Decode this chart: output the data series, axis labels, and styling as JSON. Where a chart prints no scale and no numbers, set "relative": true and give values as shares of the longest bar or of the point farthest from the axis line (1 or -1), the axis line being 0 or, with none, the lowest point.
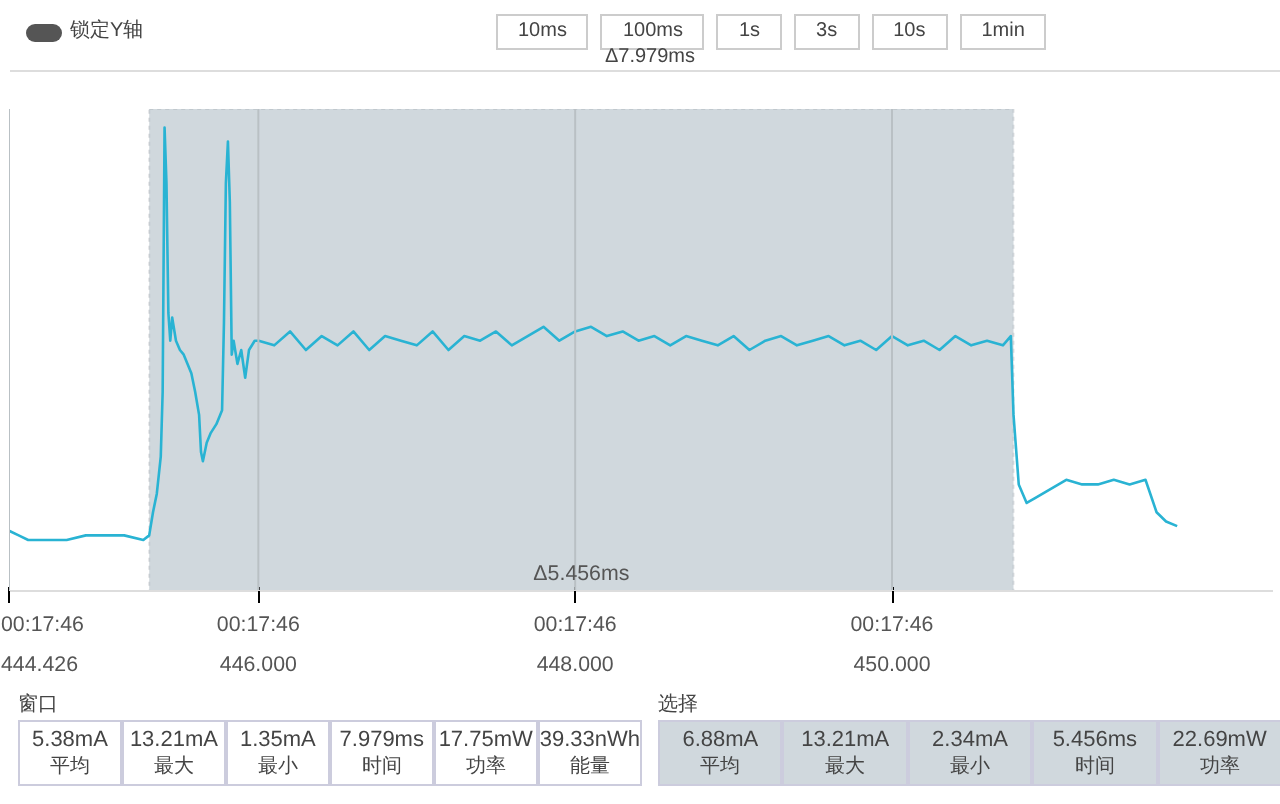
{
  "chart_data": {
    "type": "line",
    "relative": true,
    "grid": "x",
    "xlim": [
      444.426,
      452.405
    ],
    "xticks": [
      444.426,
      {
        "value": 446,
        "label": "446.000"
      },
      {
        "value": 448,
        "label": "448.000"
      },
      {
        "value": 450,
        "label": "450.000"
      }
    ],
    "x": [
      444.426,
      444.487,
      444.547,
      444.668,
      444.79,
      444.911,
      445.032,
      445.153,
      445.274,
      445.311,
      445.335,
      445.359,
      445.384,
      445.396,
      445.408,
      445.42,
      445.432,
      445.444,
      445.456,
      445.48,
      445.505,
      445.529,
      445.553,
      445.577,
      445.601,
      445.626,
      445.638,
      445.65,
      445.674,
      445.698,
      445.735,
      445.759,
      445.771,
      445.783,
      445.795,
      445.808,
      445.82,
      445.832,
      445.844,
      445.868,
      445.892,
      445.917,
      445.941,
      445.977,
      446.002,
      446.1,
      446.2,
      446.3,
      446.4,
      446.5,
      446.6,
      446.7,
      446.8,
      446.9,
      447.0,
      447.1,
      447.2,
      447.3,
      447.4,
      447.5,
      447.6,
      447.7,
      447.8,
      447.9,
      448.0,
      448.1,
      448.2,
      448.3,
      448.4,
      448.5,
      448.6,
      448.7,
      448.8,
      448.9,
      449.0,
      449.1,
      449.2,
      449.3,
      449.4,
      449.5,
      449.6,
      449.7,
      449.8,
      449.9,
      450.0,
      450.1,
      450.2,
      450.3,
      450.4,
      450.5,
      450.6,
      450.7,
      450.75,
      450.767,
      450.8,
      450.85,
      450.9,
      451.0,
      451.1,
      451.2,
      451.3,
      451.4,
      451.5,
      451.6,
      451.67,
      451.73,
      451.8
    ],
    "series": [
      {
        "color": "#29b3d3",
        "values": [
          0.13,
          0.12,
          0.11,
          0.11,
          0.11,
          0.12,
          0.12,
          0.12,
          0.11,
          0.12,
          0.17,
          0.21,
          0.29,
          0.43,
          1.0,
          0.88,
          0.6,
          0.54,
          0.59,
          0.54,
          0.52,
          0.51,
          0.49,
          0.47,
          0.43,
          0.38,
          0.3,
          0.28,
          0.32,
          0.34,
          0.36,
          0.38,
          0.39,
          0.58,
          0.88,
          0.97,
          0.84,
          0.51,
          0.54,
          0.49,
          0.52,
          0.46,
          0.52,
          0.54,
          0.54,
          0.53,
          0.56,
          0.52,
          0.55,
          0.53,
          0.56,
          0.52,
          0.55,
          0.54,
          0.53,
          0.56,
          0.52,
          0.55,
          0.54,
          0.56,
          0.53,
          0.55,
          0.57,
          0.54,
          0.56,
          0.57,
          0.55,
          0.56,
          0.54,
          0.55,
          0.53,
          0.55,
          0.54,
          0.53,
          0.55,
          0.52,
          0.54,
          0.55,
          0.53,
          0.54,
          0.55,
          0.53,
          0.54,
          0.52,
          0.55,
          0.53,
          0.54,
          0.52,
          0.55,
          0.53,
          0.54,
          0.53,
          0.55,
          0.38,
          0.23,
          0.19,
          0.2,
          0.22,
          0.24,
          0.23,
          0.23,
          0.24,
          0.23,
          0.24,
          0.17,
          0.15,
          0.14
        ]
      }
    ],
    "bands": [
      {
        "axis": "x",
        "from": 445.311,
        "to": 450.767,
        "label": "Δ5.456ms",
        "color": "#d0d8dd"
      }
    ],
    "annotations": [
      "锁定Y轴",
      "10ms",
      "100ms",
      "1s",
      "3s",
      "10s",
      "1min",
      "Δ7.979ms",
      "窗口",
      "5.38mA",
      "平均",
      "13.21mA",
      "最大",
      "1.35mA",
      "最小",
      "7.979ms",
      "时间",
      "17.75mW",
      "功率",
      "39.33nWh",
      "能量",
      "选择",
      "6.88mA",
      "平均",
      "13.21mA",
      "最大",
      "2.34mA",
      "最小",
      "5.456ms",
      "时间",
      "22.69mW",
      "功率",
      "00:17:46",
      "00:17:46",
      "00:17:46",
      "00:17:46"
    ]
  }
}
